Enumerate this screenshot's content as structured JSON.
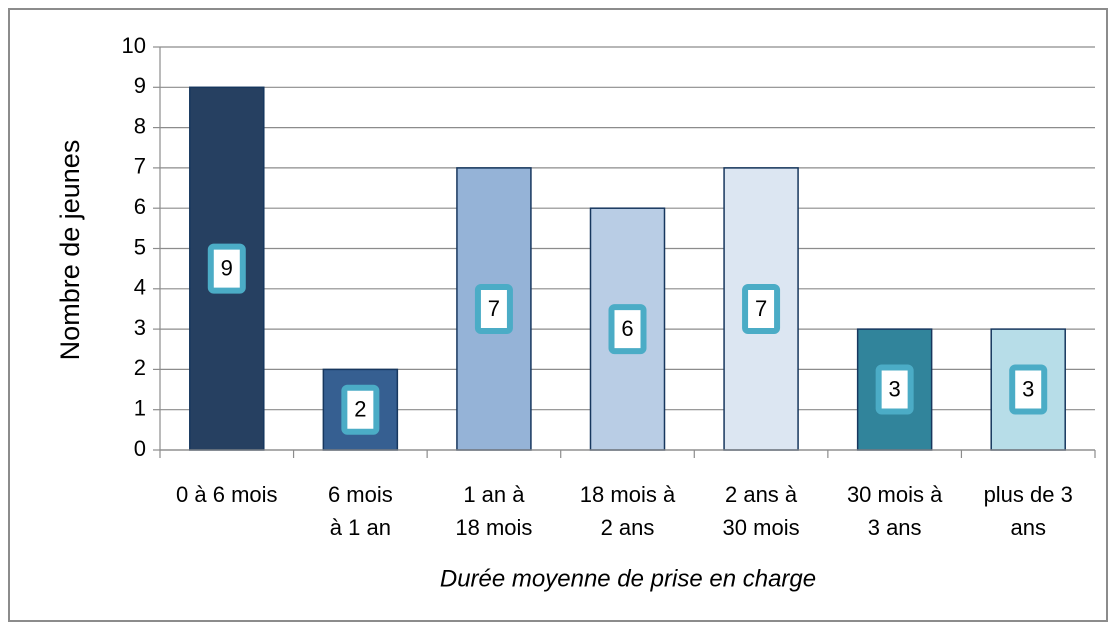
{
  "chart_data": {
    "type": "bar",
    "y_label": "Nombre de jeunes",
    "x_label": "Durée moyenne de prise en charge",
    "categories": [
      "0 à 6 mois",
      "6 mois\nà 1 an",
      "1 an à\n18 mois",
      "18 mois à\n2 ans",
      "2 ans à\n30 mois",
      "30  mois à\n3 ans",
      "plus de 3\nans"
    ],
    "values": [
      9,
      2,
      7,
      6,
      7,
      3,
      3
    ],
    "colors": [
      "#264061",
      "#365f91",
      "#95b3d7",
      "#b9cde5",
      "#dce6f2",
      "#31849b",
      "#b7dde8"
    ],
    "label_border_color": "#4bacc6",
    "ylim": [
      0,
      10
    ],
    "yticks": [
      0,
      1,
      2,
      3,
      4,
      5,
      6,
      7,
      8,
      9,
      10
    ],
    "grid": true
  }
}
